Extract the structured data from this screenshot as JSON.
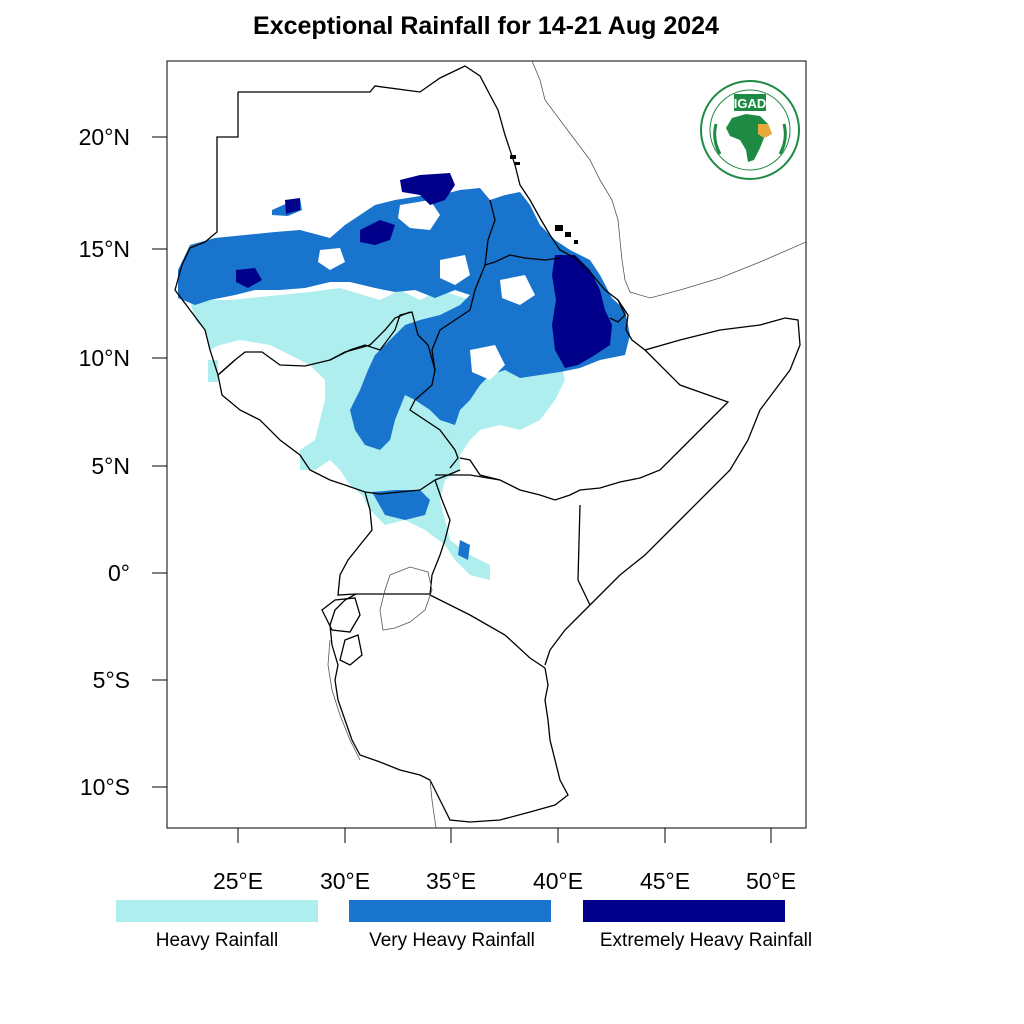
{
  "title": "Exceptional Rainfall for 14-21 Aug 2024",
  "logo": {
    "text": "IGAD",
    "ring_text": "INTERGOVERNMENTAL AUTHORITY ON DEVELOPMENT • AUTORITE INTERGOUVERNEMENTALE POUR LE DEVELOPPEMENT",
    "colors": {
      "green": "#1e8a43",
      "gold": "#e9a93a"
    }
  },
  "axes": {
    "lat_ticks": [
      "20°N",
      "15°N",
      "10°N",
      "5°N",
      "0°",
      "5°S",
      "10°S"
    ],
    "lon_ticks": [
      "25°E",
      "30°E",
      "35°E",
      "40°E",
      "45°E",
      "50°E"
    ],
    "lat_range": [
      -11.8,
      23.5
    ],
    "lon_range": [
      21.8,
      51.8
    ]
  },
  "legend": [
    {
      "label": "Heavy Rainfall",
      "color": "#aeeeee"
    },
    {
      "label": "Very Heavy Rainfall",
      "color": "#1874cd"
    },
    {
      "label": "Extremely Heavy Rainfall",
      "color": "#00008b"
    }
  ],
  "colors": {
    "border": "#000000",
    "lake": "#666666",
    "frame": "#000000"
  }
}
